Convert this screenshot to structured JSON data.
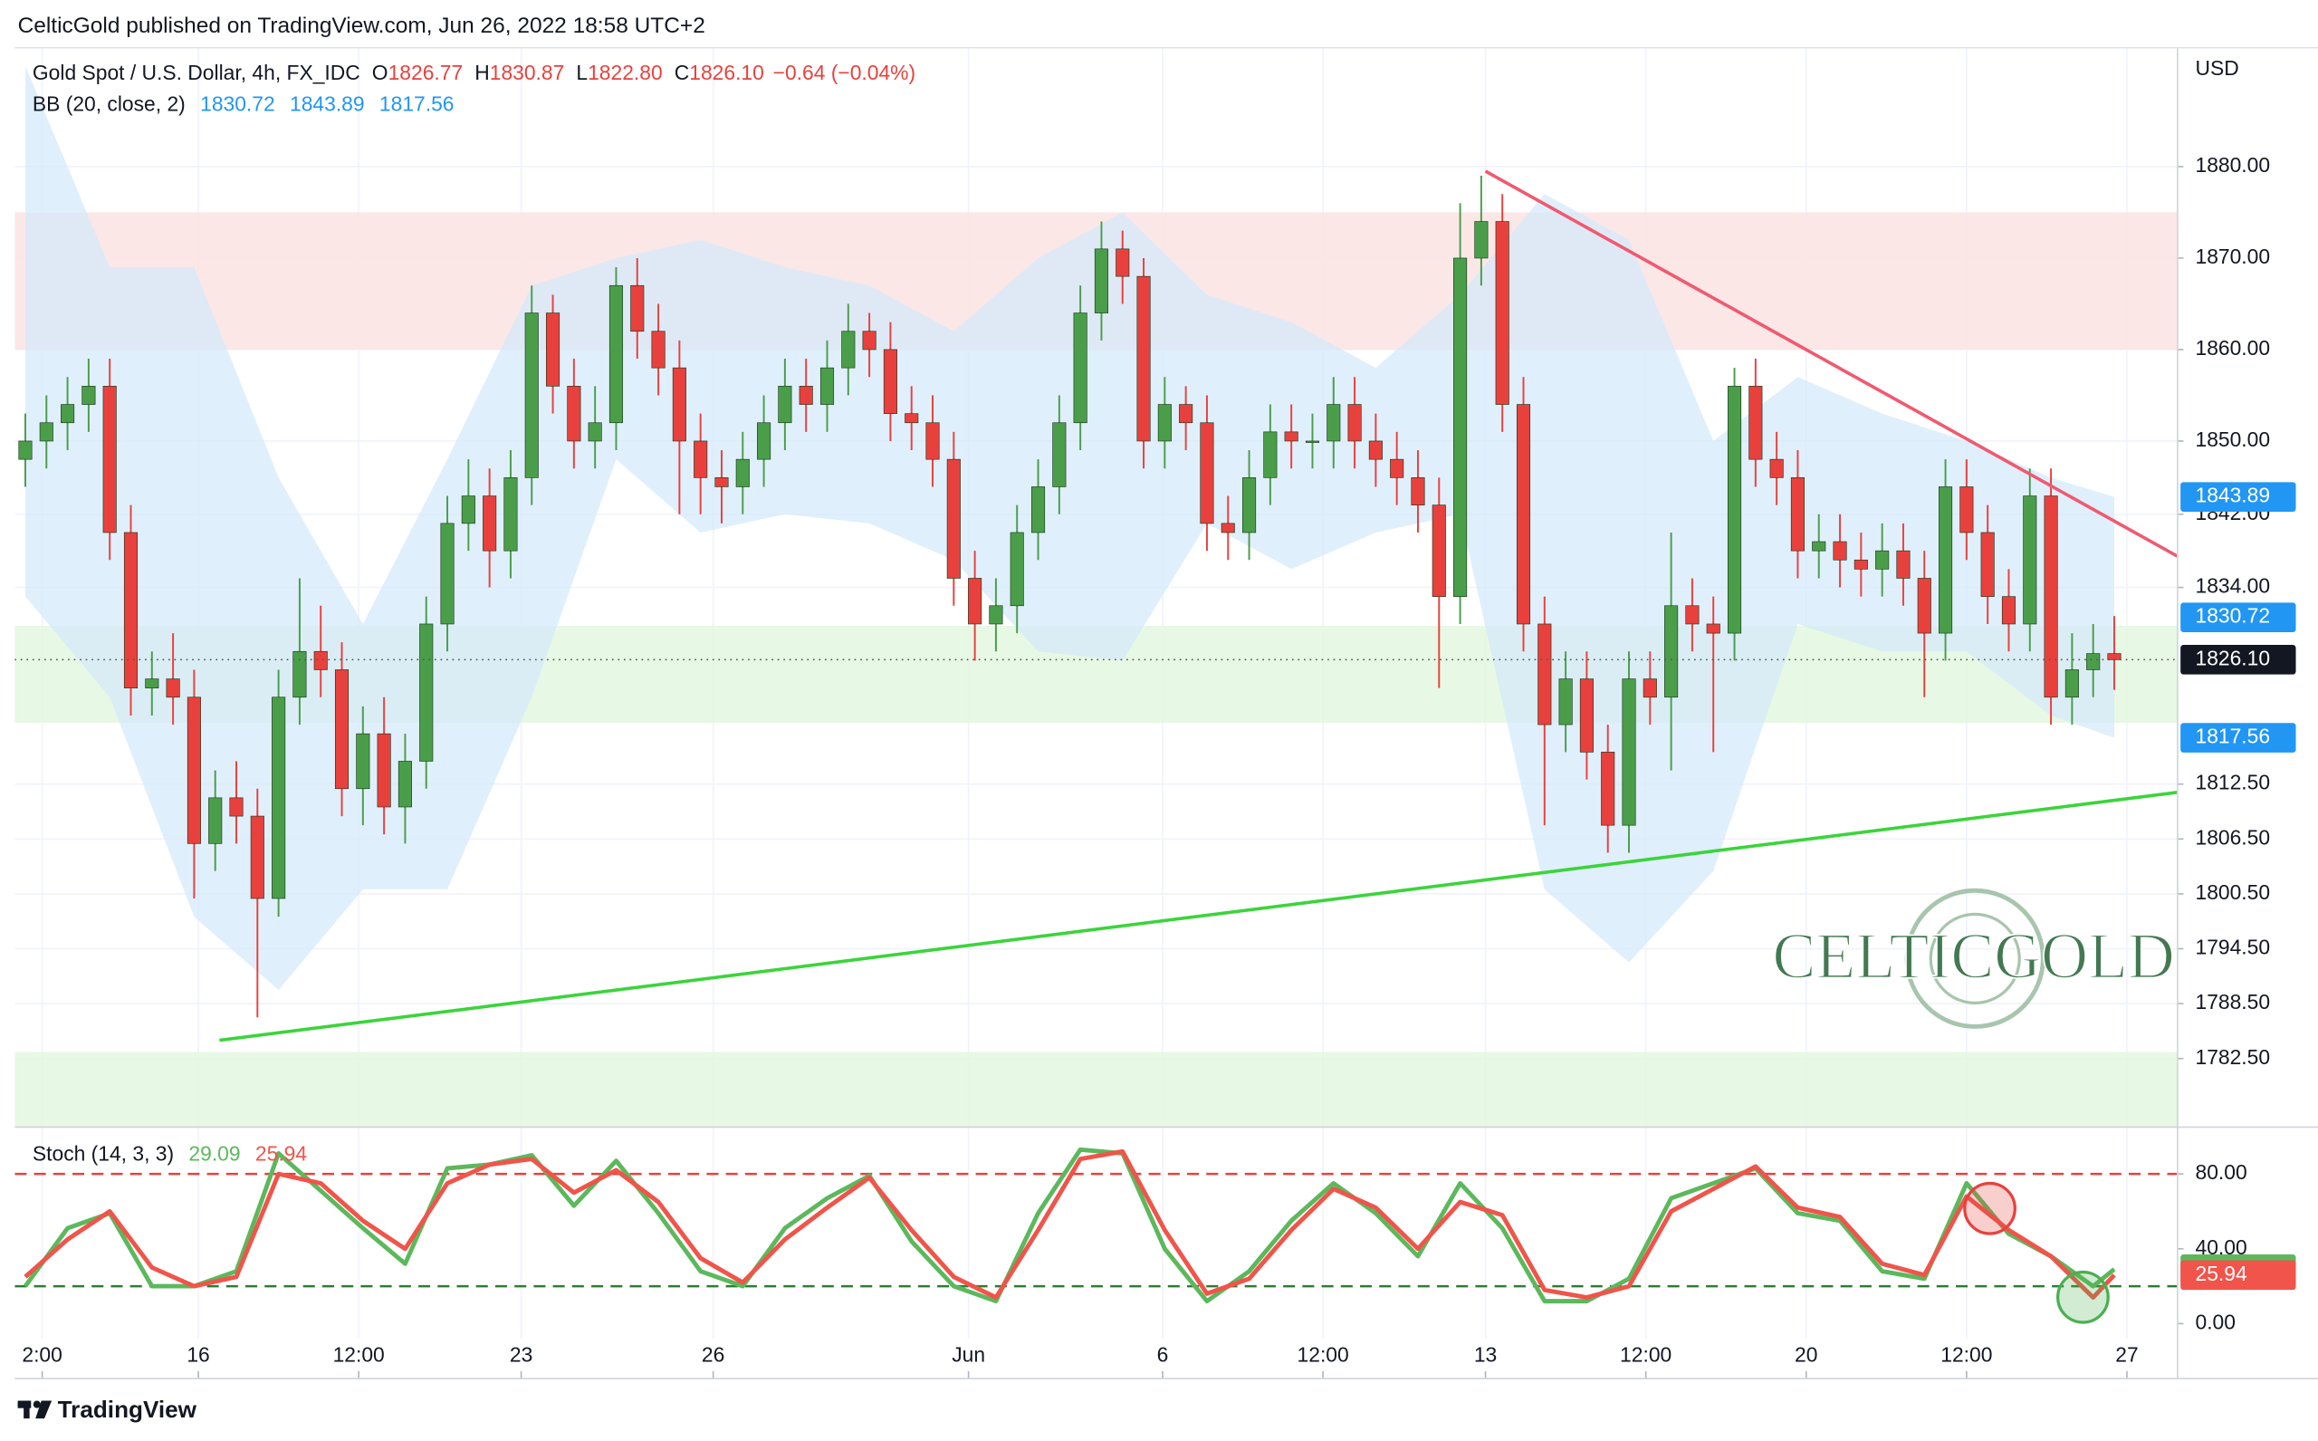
{
  "publisher_note": "CelticGold published on TradingView.com, Jun 26, 2022 18:58 UTC+2",
  "footer_brand": "TradingView",
  "watermark": "CELTICGOLD",
  "chart_data": [
    {
      "type": "candlestick",
      "title": "Gold Spot / U.S. Dollar, 4h, FX_IDC",
      "ohlc_header": [
        {
          "key": "O",
          "text": "1826.77"
        },
        {
          "key": "H",
          "text": "1830.87"
        },
        {
          "key": "L",
          "text": "1822.80"
        },
        {
          "key": "C",
          "text": "1826.10"
        }
      ],
      "change": "−0.64 (−0.04%)",
      "currency": "USD",
      "x": [
        0,
        1,
        2,
        3,
        4,
        5,
        6,
        7,
        8,
        9,
        10,
        11,
        12,
        13,
        14,
        15,
        16,
        17,
        18,
        19,
        20,
        21,
        22,
        23,
        24,
        25,
        26,
        27,
        28,
        29,
        30,
        31,
        32,
        33,
        34,
        35,
        36,
        37,
        38,
        39,
        40,
        41,
        42,
        43,
        44,
        45,
        46,
        47,
        48,
        49,
        50,
        51,
        52,
        53,
        54,
        55,
        56,
        57,
        58,
        59,
        60,
        61,
        62,
        63,
        64,
        65,
        66,
        67,
        68,
        69,
        70,
        71,
        72,
        73,
        74,
        75,
        76,
        77,
        78,
        79,
        80,
        81,
        82,
        83,
        84,
        85,
        86,
        87,
        88,
        89,
        90,
        91,
        92,
        93,
        94,
        95,
        96,
        97,
        98,
        99
      ],
      "candles": [
        [
          1848,
          1853,
          1845,
          1850
        ],
        [
          1850,
          1855,
          1847,
          1852
        ],
        [
          1852,
          1857,
          1849,
          1854
        ],
        [
          1854,
          1859,
          1851,
          1856
        ],
        [
          1856,
          1859,
          1837,
          1840
        ],
        [
          1840,
          1843,
          1820,
          1823
        ],
        [
          1823,
          1827,
          1820,
          1824
        ],
        [
          1824,
          1829,
          1819,
          1822
        ],
        [
          1822,
          1825,
          1800,
          1806
        ],
        [
          1806,
          1814,
          1803,
          1811
        ],
        [
          1811,
          1815,
          1806,
          1809
        ],
        [
          1809,
          1812,
          1787,
          1800
        ],
        [
          1800,
          1825,
          1798,
          1822
        ],
        [
          1822,
          1835,
          1819,
          1827
        ],
        [
          1827,
          1832,
          1822,
          1825
        ],
        [
          1825,
          1828,
          1809,
          1812
        ],
        [
          1812,
          1821,
          1808,
          1818
        ],
        [
          1818,
          1822,
          1807,
          1810
        ],
        [
          1810,
          1818,
          1806,
          1815
        ],
        [
          1815,
          1833,
          1812,
          1830
        ],
        [
          1830,
          1844,
          1827,
          1841
        ],
        [
          1841,
          1848,
          1838,
          1844
        ],
        [
          1844,
          1847,
          1834,
          1838
        ],
        [
          1838,
          1849,
          1835,
          1846
        ],
        [
          1846,
          1867,
          1843,
          1864
        ],
        [
          1864,
          1866,
          1853,
          1856
        ],
        [
          1856,
          1859,
          1847,
          1850
        ],
        [
          1850,
          1856,
          1847,
          1852
        ],
        [
          1852,
          1869,
          1849,
          1867
        ],
        [
          1867,
          1870,
          1859,
          1862
        ],
        [
          1862,
          1865,
          1855,
          1858
        ],
        [
          1858,
          1861,
          1842,
          1850
        ],
        [
          1850,
          1853,
          1842,
          1846
        ],
        [
          1846,
          1849,
          1841,
          1845
        ],
        [
          1845,
          1851,
          1842,
          1848
        ],
        [
          1848,
          1855,
          1845,
          1852
        ],
        [
          1852,
          1859,
          1849,
          1856
        ],
        [
          1856,
          1859,
          1851,
          1854
        ],
        [
          1854,
          1861,
          1851,
          1858
        ],
        [
          1858,
          1865,
          1855,
          1862
        ],
        [
          1862,
          1864,
          1857,
          1860
        ],
        [
          1860,
          1863,
          1850,
          1853
        ],
        [
          1853,
          1856,
          1849,
          1852
        ],
        [
          1852,
          1855,
          1845,
          1848
        ],
        [
          1848,
          1851,
          1832,
          1835
        ],
        [
          1835,
          1838,
          1826,
          1830
        ],
        [
          1830,
          1835,
          1827,
          1832
        ],
        [
          1832,
          1843,
          1829,
          1840
        ],
        [
          1840,
          1848,
          1837,
          1845
        ],
        [
          1845,
          1855,
          1842,
          1852
        ],
        [
          1852,
          1867,
          1849,
          1864
        ],
        [
          1864,
          1874,
          1861,
          1871
        ],
        [
          1871,
          1873,
          1865,
          1868
        ],
        [
          1868,
          1870,
          1847,
          1850
        ],
        [
          1850,
          1857,
          1847,
          1854
        ],
        [
          1854,
          1856,
          1849,
          1852
        ],
        [
          1852,
          1855,
          1838,
          1841
        ],
        [
          1841,
          1844,
          1837,
          1840
        ],
        [
          1840,
          1849,
          1837,
          1846
        ],
        [
          1846,
          1854,
          1843,
          1851
        ],
        [
          1851,
          1854,
          1847,
          1850
        ],
        [
          1850,
          1853,
          1847,
          1850
        ],
        [
          1850,
          1857,
          1847,
          1854
        ],
        [
          1854,
          1857,
          1847,
          1850
        ],
        [
          1850,
          1853,
          1845,
          1848
        ],
        [
          1848,
          1851,
          1843,
          1846
        ],
        [
          1846,
          1849,
          1840,
          1843
        ],
        [
          1843,
          1846,
          1823,
          1833
        ],
        [
          1833,
          1876,
          1830,
          1870
        ],
        [
          1870,
          1879,
          1867,
          1874
        ],
        [
          1874,
          1877,
          1851,
          1854
        ],
        [
          1854,
          1857,
          1827,
          1830
        ],
        [
          1830,
          1833,
          1808,
          1819
        ],
        [
          1819,
          1827,
          1816,
          1824
        ],
        [
          1824,
          1827,
          1813,
          1816
        ],
        [
          1816,
          1819,
          1805,
          1808
        ],
        [
          1808,
          1827,
          1805,
          1824
        ],
        [
          1824,
          1827,
          1819,
          1822
        ],
        [
          1822,
          1840,
          1814,
          1832
        ],
        [
          1832,
          1835,
          1827,
          1830
        ],
        [
          1830,
          1833,
          1816,
          1829
        ],
        [
          1829,
          1858,
          1826,
          1856
        ],
        [
          1856,
          1859,
          1845,
          1848
        ],
        [
          1848,
          1851,
          1843,
          1846
        ],
        [
          1846,
          1849,
          1835,
          1838
        ],
        [
          1838,
          1842,
          1835,
          1839
        ],
        [
          1839,
          1842,
          1834,
          1837
        ],
        [
          1837,
          1840,
          1833,
          1836
        ],
        [
          1836,
          1841,
          1833,
          1838
        ],
        [
          1838,
          1841,
          1832,
          1835
        ],
        [
          1835,
          1838,
          1822,
          1829
        ],
        [
          1829,
          1848,
          1826,
          1845
        ],
        [
          1845,
          1848,
          1837,
          1840
        ],
        [
          1840,
          1843,
          1830,
          1833
        ],
        [
          1833,
          1836,
          1827,
          1830
        ],
        [
          1830,
          1847,
          1827,
          1844
        ],
        [
          1844,
          1847,
          1819,
          1822
        ],
        [
          1822,
          1829,
          1819,
          1825
        ],
        [
          1825,
          1830,
          1822,
          1826.77
        ],
        [
          1826.77,
          1830.87,
          1822.8,
          1826.1
        ]
      ],
      "up_color": "#4a9e4a",
      "down_color": "#e8413d",
      "xlim": [
        -0.5,
        102
      ],
      "xticks": [
        {
          "value": 0.8,
          "label": "2:00"
        },
        {
          "value": 8.2,
          "label": "16"
        },
        {
          "value": 15.8,
          "label": "12:00"
        },
        {
          "value": 23.5,
          "label": "23"
        },
        {
          "value": 32.6,
          "label": "26"
        },
        {
          "value": 44.7,
          "label": "Jun"
        },
        {
          "value": 53.9,
          "label": "6"
        },
        {
          "value": 61.5,
          "label": "12:00"
        },
        {
          "value": 69.2,
          "label": "13"
        },
        {
          "value": 76.8,
          "label": "12:00"
        },
        {
          "value": 84.4,
          "label": "20"
        },
        {
          "value": 92,
          "label": "12:00"
        },
        {
          "value": 99.6,
          "label": "27"
        }
      ],
      "ylim": [
        1775,
        1893
      ],
      "yticks": [
        {
          "value": 1880,
          "label": "1880.00"
        },
        {
          "value": 1870,
          "label": "1870.00"
        },
        {
          "value": 1860,
          "label": "1860.00"
        },
        {
          "value": 1850,
          "label": "1850.00"
        },
        {
          "value": 1842,
          "label": "1842.00"
        },
        {
          "value": 1834,
          "label": "1834.00"
        },
        {
          "value": 1812.5,
          "label": "1812.50"
        },
        {
          "value": 1806.5,
          "label": "1806.50"
        },
        {
          "value": 1800.5,
          "label": "1800.50"
        },
        {
          "value": 1794.5,
          "label": "1794.50"
        },
        {
          "value": 1788.5,
          "label": "1788.50"
        },
        {
          "value": 1782.5,
          "label": "1782.50"
        }
      ],
      "grid": true,
      "bollinger": {
        "name": "BB (20, close, 2)",
        "color": "#d6eafb",
        "x": [
          0,
          4,
          8,
          12,
          16,
          20,
          24,
          28,
          32,
          36,
          40,
          44,
          48,
          52,
          56,
          60,
          64,
          68,
          72,
          76,
          80,
          84,
          88,
          92,
          96,
          99
        ],
        "upper": [
          1891,
          1869,
          1869,
          1846,
          1830,
          1848,
          1867,
          1870,
          1872,
          1869,
          1867,
          1862,
          1870,
          1875,
          1866,
          1863,
          1858,
          1866,
          1877,
          1872,
          1850,
          1857,
          1853,
          1850,
          1846,
          1843.89
        ],
        "lower": [
          1833,
          1822,
          1798,
          1790,
          1801,
          1801,
          1822,
          1848,
          1840,
          1842,
          1841,
          1837,
          1827,
          1826,
          1841,
          1836,
          1840,
          1842,
          1801,
          1793,
          1803,
          1830,
          1827,
          1827,
          1820,
          1817.56
        ],
        "last": {
          "basis": 1830.72,
          "upper": 1843.89,
          "lower": 1817.56
        }
      },
      "zones": [
        {
          "range": [
            1860,
            1875
          ],
          "color": "#fbe3e3"
        },
        {
          "range": [
            1819.2,
            1829.8
          ],
          "color": "#e3f7df"
        },
        {
          "range": [
            1775,
            1783.2
          ],
          "color": "#e3f7df"
        }
      ],
      "lines": [
        {
          "color": "#ef5a6f",
          "points": [
            [
              69.2,
              1879.5
            ],
            [
              102,
              1837.4
            ]
          ]
        },
        {
          "color": "#3bd43b",
          "points": [
            [
              9.2,
              1784.5
            ],
            [
              102,
              1811.6
            ]
          ]
        }
      ],
      "last_price": {
        "value": 1826.1,
        "label": "1826.10"
      }
    },
    {
      "type": "line",
      "title": "Stoch (14, 3, 3)",
      "x": [
        0,
        2,
        4,
        6,
        8,
        10,
        12,
        14,
        16,
        18,
        20,
        22,
        24,
        26,
        28,
        30,
        32,
        34,
        36,
        38,
        40,
        42,
        44,
        46,
        48,
        50,
        52,
        54,
        56,
        58,
        60,
        62,
        64,
        66,
        68,
        70,
        72,
        74,
        76,
        78,
        80,
        82,
        84,
        86,
        88,
        90,
        92,
        94,
        96,
        98,
        99
      ],
      "series": [
        {
          "color": "#5cb85c",
          "values": [
            20,
            51,
            59,
            20,
            20,
            28,
            91,
            71,
            51,
            32,
            83,
            85,
            90,
            63,
            87,
            59,
            28,
            20,
            51,
            67,
            79,
            44,
            20,
            12,
            59,
            93,
            91,
            40,
            12,
            28,
            55,
            75,
            59,
            36,
            75,
            51,
            12,
            12,
            24,
            67,
            75,
            83,
            59,
            55,
            28,
            24,
            75,
            48,
            36,
            20,
            29.09
          ]
        },
        {
          "color": "#f0544a",
          "values": [
            25,
            45,
            60,
            30,
            20,
            25,
            80,
            75,
            55,
            40,
            75,
            85,
            88,
            70,
            82,
            65,
            35,
            22,
            45,
            62,
            78,
            50,
            25,
            14,
            50,
            88,
            92,
            50,
            16,
            24,
            50,
            72,
            62,
            40,
            65,
            58,
            18,
            14,
            20,
            60,
            72,
            84,
            62,
            57,
            32,
            26,
            68,
            50,
            36,
            14,
            25.94
          ]
        }
      ],
      "ylim": [
        -8,
        105
      ],
      "yticks": [
        {
          "value": 80,
          "label": "80.00"
        },
        {
          "value": 40,
          "label": "40.00"
        },
        {
          "value": 0,
          "label": "0.00"
        }
      ],
      "levels": [
        {
          "value": 80,
          "color": "#e8413d"
        },
        {
          "value": 20,
          "color": "#2e7d32"
        }
      ]
    }
  ]
}
